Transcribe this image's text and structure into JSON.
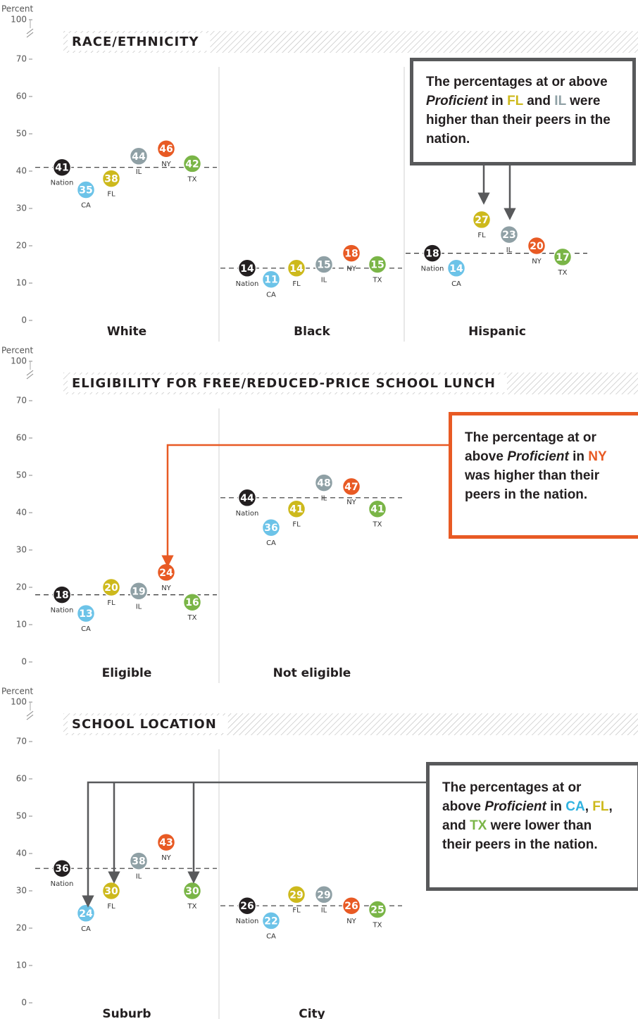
{
  "chart_data": [
    {
      "type": "dot",
      "section_title": "RACE/ETHNICITY",
      "y_label": "Percent",
      "ylim": [
        0,
        70
      ],
      "yticks": [
        0,
        10,
        20,
        30,
        40,
        50,
        60,
        70,
        100
      ],
      "axis_break": true,
      "categories": [
        "White",
        "Black",
        "Hispanic"
      ],
      "series": [
        {
          "name": "Nation",
          "color": "#231f20",
          "values": [
            41,
            14,
            18
          ]
        },
        {
          "name": "CA",
          "color": "#6cc3e8",
          "values": [
            35,
            11,
            14
          ]
        },
        {
          "name": "FL",
          "color": "#cdb91c",
          "values": [
            38,
            14,
            27
          ]
        },
        {
          "name": "IL",
          "color": "#8fa0a5",
          "values": [
            44,
            15,
            23
          ]
        },
        {
          "name": "NY",
          "color": "#e85a24",
          "values": [
            46,
            18,
            20
          ]
        },
        {
          "name": "TX",
          "color": "#7ab547",
          "values": [
            42,
            15,
            17
          ]
        }
      ],
      "annotation": [
        {
          "text": "The percentages at or above "
        },
        {
          "text": "Proficient",
          "italic": true
        },
        {
          "text": " in "
        },
        {
          "text": "FL",
          "color": "#cdb91c"
        },
        {
          "text": " and "
        },
        {
          "text": "IL",
          "color": "#8fa0a5"
        },
        {
          "text": " were higher than their peers in the nation."
        }
      ]
    },
    {
      "type": "dot",
      "section_title": "ELIGIBILITY FOR FREE/REDUCED-PRICE SCHOOL LUNCH",
      "y_label": "Percent",
      "ylim": [
        0,
        70
      ],
      "yticks": [
        0,
        10,
        20,
        30,
        40,
        50,
        60,
        70,
        100
      ],
      "axis_break": true,
      "categories": [
        "Eligible",
        "Not eligible"
      ],
      "series": [
        {
          "name": "Nation",
          "color": "#231f20",
          "values": [
            18,
            44
          ]
        },
        {
          "name": "CA",
          "color": "#6cc3e8",
          "values": [
            13,
            36
          ]
        },
        {
          "name": "FL",
          "color": "#cdb91c",
          "values": [
            20,
            41
          ]
        },
        {
          "name": "IL",
          "color": "#8fa0a5",
          "values": [
            19,
            48
          ]
        },
        {
          "name": "NY",
          "color": "#e85a24",
          "values": [
            24,
            47
          ]
        },
        {
          "name": "TX",
          "color": "#7ab547",
          "values": [
            16,
            41
          ]
        }
      ],
      "annotation": [
        {
          "text": "The percentage at or above "
        },
        {
          "text": "Proficient",
          "italic": true
        },
        {
          "text": " in "
        },
        {
          "text": "NY",
          "color": "#e85a24"
        },
        {
          "text": " was higher than their peers in the nation."
        }
      ]
    },
    {
      "type": "dot",
      "section_title": "SCHOOL LOCATION",
      "y_label": "Percent",
      "ylim": [
        0,
        70
      ],
      "yticks": [
        0,
        10,
        20,
        30,
        40,
        50,
        60,
        70,
        100
      ],
      "axis_break": true,
      "categories": [
        "Suburb",
        "City"
      ],
      "series": [
        {
          "name": "Nation",
          "color": "#231f20",
          "values": [
            36,
            26
          ]
        },
        {
          "name": "CA",
          "color": "#6cc3e8",
          "values": [
            24,
            22
          ]
        },
        {
          "name": "FL",
          "color": "#cdb91c",
          "values": [
            30,
            29
          ]
        },
        {
          "name": "IL",
          "color": "#8fa0a5",
          "values": [
            38,
            29
          ]
        },
        {
          "name": "NY",
          "color": "#e85a24",
          "values": [
            43,
            26
          ]
        },
        {
          "name": "TX",
          "color": "#7ab547",
          "values": [
            30,
            25
          ]
        }
      ],
      "annotation": [
        {
          "text": "The percentages at or above "
        },
        {
          "text": "Proficient",
          "italic": true
        },
        {
          "text": " in "
        },
        {
          "text": "CA",
          "color": "#2fb2e0"
        },
        {
          "text": ", "
        },
        {
          "text": "FL",
          "color": "#cdb91c"
        },
        {
          "text": ", and "
        },
        {
          "text": "TX",
          "color": "#7ab547"
        },
        {
          "text": " were lower than their peers in the nation."
        }
      ]
    }
  ]
}
